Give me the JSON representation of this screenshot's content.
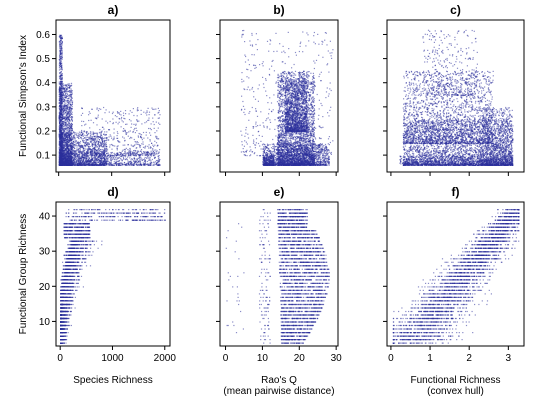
{
  "colors": {
    "points": "#2b2f9a",
    "frame": "#000000"
  },
  "chart_data": [
    {
      "panel": "a)",
      "type": "scatter",
      "xlabel": "",
      "ylabel": "Functional Simpson's Index",
      "xlim": [
        -50,
        2100
      ],
      "ylim": [
        0.03,
        0.66
      ],
      "xticks": [
        0,
        1000,
        2000
      ],
      "xticklabels": [
        "",
        "",
        ""
      ],
      "yticks": [
        0.1,
        0.2,
        0.3,
        0.4,
        0.5,
        0.6
      ],
      "yticklabels": [
        "0.1",
        "0.2",
        "0.3",
        "0.4",
        "0.5",
        "0.6"
      ],
      "clusters": [
        {
          "x": [
            0,
            60
          ],
          "y": [
            0.06,
            0.6
          ],
          "n": 900
        },
        {
          "x": [
            0,
            250
          ],
          "y": [
            0.06,
            0.4
          ],
          "n": 1500
        },
        {
          "x": [
            30,
            900
          ],
          "y": [
            0.06,
            0.2
          ],
          "n": 1300
        },
        {
          "x": [
            400,
            1900
          ],
          "y": [
            0.1,
            0.3
          ],
          "n": 500
        },
        {
          "x": [
            0,
            1900
          ],
          "y": [
            0.06,
            0.12
          ],
          "n": 800
        }
      ]
    },
    {
      "panel": "b)",
      "type": "scatter",
      "xlabel": "",
      "ylabel": "",
      "xlim": [
        -1.5,
        30.5
      ],
      "ylim": [
        0.03,
        0.66
      ],
      "xticks": [
        0,
        10,
        20,
        30
      ],
      "xticklabels": [
        "",
        "",
        "",
        ""
      ],
      "yticks": [
        0.1,
        0.2,
        0.3,
        0.4,
        0.5,
        0.6
      ],
      "yticklabels": [
        "",
        "",
        "",
        "",
        "",
        ""
      ],
      "clusters": [
        {
          "x": [
            14,
            24
          ],
          "y": [
            0.06,
            0.45
          ],
          "n": 2600
        },
        {
          "x": [
            16,
            22
          ],
          "y": [
            0.2,
            0.42
          ],
          "n": 1200
        },
        {
          "x": [
            10,
            28
          ],
          "y": [
            0.06,
            0.15
          ],
          "n": 1400
        },
        {
          "x": [
            4,
            29
          ],
          "y": [
            0.1,
            0.62
          ],
          "n": 500
        },
        {
          "x": [
            10,
            13
          ],
          "y": [
            0.06,
            0.1
          ],
          "n": 250
        }
      ]
    },
    {
      "panel": "c)",
      "type": "scatter",
      "xlabel": "",
      "ylabel": "",
      "xlim": [
        -0.1,
        3.4
      ],
      "ylim": [
        0.03,
        0.66
      ],
      "xticks": [
        0,
        1,
        2,
        3
      ],
      "xticklabels": [
        "",
        "",
        "",
        ""
      ],
      "yticks": [
        0.1,
        0.2,
        0.3,
        0.4,
        0.5,
        0.6
      ],
      "yticklabels": [
        "",
        "",
        "",
        "",
        "",
        ""
      ],
      "clusters": [
        {
          "x": [
            0.3,
            3.1
          ],
          "y": [
            0.06,
            0.25
          ],
          "n": 2600
        },
        {
          "x": [
            0.3,
            2.6
          ],
          "y": [
            0.15,
            0.45
          ],
          "n": 2000
        },
        {
          "x": [
            2.3,
            3.1
          ],
          "y": [
            0.06,
            0.3
          ],
          "n": 900
        },
        {
          "x": [
            0.8,
            2.2
          ],
          "y": [
            0.35,
            0.62
          ],
          "n": 350
        },
        {
          "x": [
            0.2,
            3.1
          ],
          "y": [
            0.06,
            0.1
          ],
          "n": 700
        }
      ]
    },
    {
      "panel": "d)",
      "type": "scatter",
      "xlabel": "Species Richness",
      "ylabel": "Functional Group Richness",
      "xlim": [
        -80,
        2100
      ],
      "ylim": [
        3,
        44
      ],
      "xticks": [
        0,
        1000,
        2000
      ],
      "xticklabels": [
        "0",
        "1000",
        "2000"
      ],
      "yticks": [
        10,
        20,
        30,
        40
      ],
      "yticklabels": [
        "10",
        "20",
        "30",
        "40"
      ],
      "y_integer": true,
      "relation": {
        "kind": "saturating",
        "y_min": 4,
        "y_max": 42,
        "x_sat": 550
      },
      "n": 3500
    },
    {
      "panel": "e)",
      "type": "scatter",
      "xlabel": "Rao's Q\n(mean pairwise distance)",
      "ylabel": "",
      "xlim": [
        -1.5,
        30.5
      ],
      "ylim": [
        3,
        44
      ],
      "xticks": [
        0,
        10,
        20,
        30
      ],
      "xticklabels": [
        "0",
        "10",
        "20",
        "30"
      ],
      "yticks": [
        10,
        20,
        30,
        40
      ],
      "yticklabels": [
        "",
        "",
        "",
        ""
      ],
      "y_integer": true,
      "relation": {
        "kind": "band",
        "y_min": 4,
        "y_max": 42,
        "x_low": [
          12,
          18
        ],
        "x_high": [
          25,
          29
        ]
      },
      "n": 3500
    },
    {
      "panel": "f)",
      "type": "scatter",
      "xlabel": "Functional Richness\n(convex hull)",
      "ylabel": "",
      "xlim": [
        -0.1,
        3.4
      ],
      "ylim": [
        3,
        44
      ],
      "xticks": [
        0,
        1,
        2,
        3
      ],
      "xticklabels": [
        "0",
        "1",
        "2",
        "3"
      ],
      "yticks": [
        10,
        20,
        30,
        40
      ],
      "yticklabels": [
        "",
        "",
        "",
        ""
      ],
      "y_integer": true,
      "relation": {
        "kind": "diagonal",
        "y_min": 4,
        "y_max": 42,
        "x_start": 0.5,
        "x_end": 3.2
      },
      "n": 3500
    }
  ]
}
